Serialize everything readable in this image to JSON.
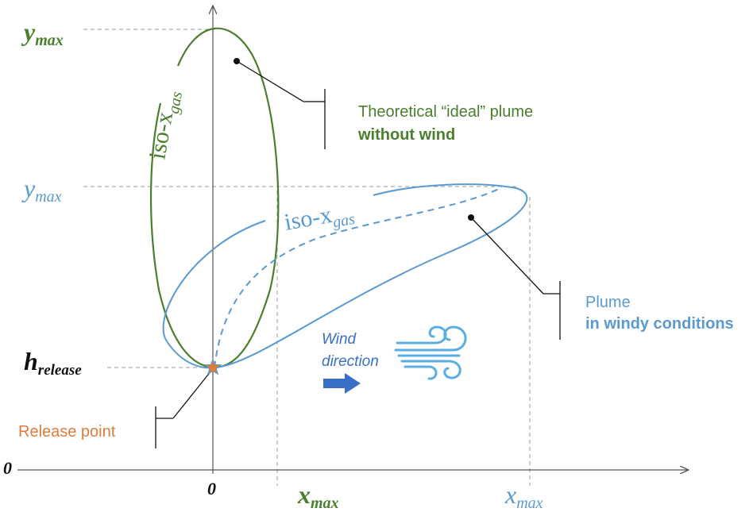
{
  "colors": {
    "ideal": "#4a7f2e",
    "windy": "#5a9ad0",
    "release": "#e07b39",
    "axis": "#555555",
    "guide": "#9a9a9a",
    "text_dark": "#111111",
    "arrow": "#3a6fc8"
  },
  "axes": {
    "origin_label": "0",
    "x_zero_label": "0"
  },
  "ideal_plume": {
    "y_max": {
      "main": "y",
      "sub": "max"
    },
    "x_max": {
      "main": "x",
      "sub": "max"
    },
    "iso_label": {
      "main": "iso-x",
      "sub": "gas"
    },
    "callout_line1": "Theoretical “ideal” plume",
    "callout_line2": "without wind"
  },
  "windy_plume": {
    "y_max": {
      "main": "y",
      "sub": "max"
    },
    "x_max": {
      "main": "x",
      "sub": "max"
    },
    "iso_label": {
      "main": "iso-x",
      "sub": "gas"
    },
    "callout_line1": "Plume",
    "callout_line2": "in windy conditions"
  },
  "release": {
    "h_label": {
      "main": "h",
      "sub": "release"
    },
    "callout": "Release point"
  },
  "wind": {
    "label_line1": "Wind",
    "label_line2": "direction",
    "icon": "wind-icon",
    "arrow_icon": "arrow-right-icon"
  }
}
